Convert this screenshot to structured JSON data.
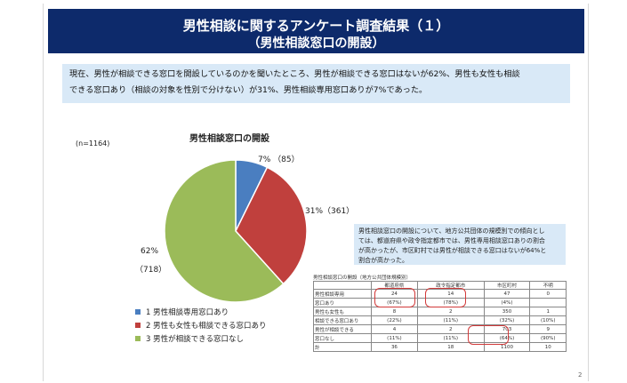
{
  "title": {
    "line1": "男性相談に関するアンケート調査結果（１）",
    "line2": "（男性相談窓口の開設）"
  },
  "summary": {
    "line1": "現在、男性が相談できる窓口を開設しているのかを聞いたところ、男性が相談できる窓口はないが62%、男性も女性も相談",
    "line2": "できる窓口あり（相談の対象を性別で分けない）が31%、男性相談専用窓口ありが7%であった。"
  },
  "chart_data": {
    "type": "pie",
    "title": "男性相談窓口の開設",
    "n_label": "(n=1164)",
    "slices": [
      {
        "label": "1 男性相談専用窓口あり",
        "value": 85,
        "percent": 7,
        "text": "7%  （85）",
        "color": "#4a7ec0"
      },
      {
        "label": "2 男性も女性も相談できる窓口あり",
        "value": 361,
        "percent": 31,
        "text": "31%（361）",
        "color": "#c0403d"
      },
      {
        "label": "3 男性が相談できる窓口なし",
        "value": 718,
        "percent": 62,
        "text_line1": "62%",
        "text_line2": "（718）",
        "color": "#9bbb59"
      }
    ],
    "legend_position": "bottom-left"
  },
  "note": {
    "line1": "男性相談窓口の開設について、地方公共団体の規模別での傾向とし",
    "line2": "ては、都道府県や政令指定都市では、男性専用相談窓口ありの割合",
    "line3": "が高かったが、市区町村では男性が相談できる窓口はないが64%と",
    "line4": "割合が高かった。"
  },
  "table": {
    "caption": "男性相談窓口の開設（地方公共団体規模別）",
    "headers": [
      "",
      "都道府県",
      "政令指定都市",
      "市区町村",
      "不明"
    ],
    "rows": [
      {
        "label1": "男性相談専用",
        "label2": "窓口あり",
        "cells": [
          [
            "24",
            "(67%)"
          ],
          [
            "14",
            "(78%)"
          ],
          [
            "47",
            "(4%)"
          ],
          [
            "0",
            ""
          ]
        ]
      },
      {
        "label1": "男性も女性も",
        "label2": "相談できる窓口あり",
        "cells": [
          [
            "8",
            "(22%)"
          ],
          [
            "2",
            "(11%)"
          ],
          [
            "350",
            "(32%)"
          ],
          [
            "1",
            "(10%)"
          ]
        ]
      },
      {
        "label1": "男性が相談できる",
        "label2": "窓口なし",
        "cells": [
          [
            "4",
            "(11%)"
          ],
          [
            "2",
            "(11%)"
          ],
          [
            "703",
            "(64%)"
          ],
          [
            "9",
            "(90%)"
          ]
        ]
      },
      {
        "label1": "計",
        "label2": "",
        "cells": [
          [
            "36",
            ""
          ],
          [
            "18",
            ""
          ],
          [
            "1100",
            ""
          ],
          [
            "10",
            ""
          ]
        ]
      }
    ]
  },
  "page_number": "2"
}
